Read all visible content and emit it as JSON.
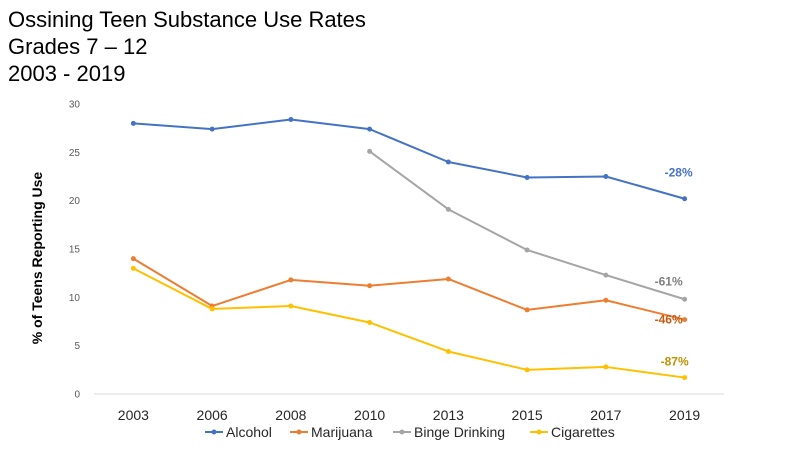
{
  "title_lines": [
    "Ossining Teen Substance Use Rates",
    "Grades 7 – 12",
    "2003 - 2019"
  ],
  "chart_data": {
    "type": "line",
    "categories": [
      "2003",
      "2006",
      "2008",
      "2010",
      "2013",
      "2015",
      "2017",
      "2019"
    ],
    "ylabel": "% of Teens Reporting Use",
    "ylim": [
      0,
      30
    ],
    "yticks": [
      0,
      5,
      10,
      15,
      20,
      25,
      30
    ],
    "grid": false,
    "legend": "bottom",
    "series": [
      {
        "name": "Alcohol",
        "color": "#4472C4",
        "values": [
          28,
          27.4,
          28.4,
          27.4,
          24,
          22.4,
          22.5,
          20.2
        ],
        "annotation": "-28%",
        "annotation_color": "#4472C4"
      },
      {
        "name": "Marijuana",
        "color": "#ED7D31",
        "values": [
          14,
          9.1,
          11.8,
          11.2,
          11.9,
          8.7,
          9.7,
          7.7
        ],
        "annotation": "-46%",
        "annotation_color": "#C55A11"
      },
      {
        "name": "Binge Drinking",
        "color": "#A5A5A5",
        "values": [
          null,
          null,
          null,
          25.1,
          19.1,
          14.9,
          12.3,
          9.8
        ],
        "annotation": "-61%",
        "annotation_color": "#7F7F7F"
      },
      {
        "name": "Cigarettes",
        "color": "#FFC000",
        "values": [
          13,
          8.8,
          9.1,
          7.4,
          4.4,
          2.5,
          2.8,
          1.7
        ],
        "annotation": "-87%",
        "annotation_color": "#BF9000"
      }
    ]
  }
}
